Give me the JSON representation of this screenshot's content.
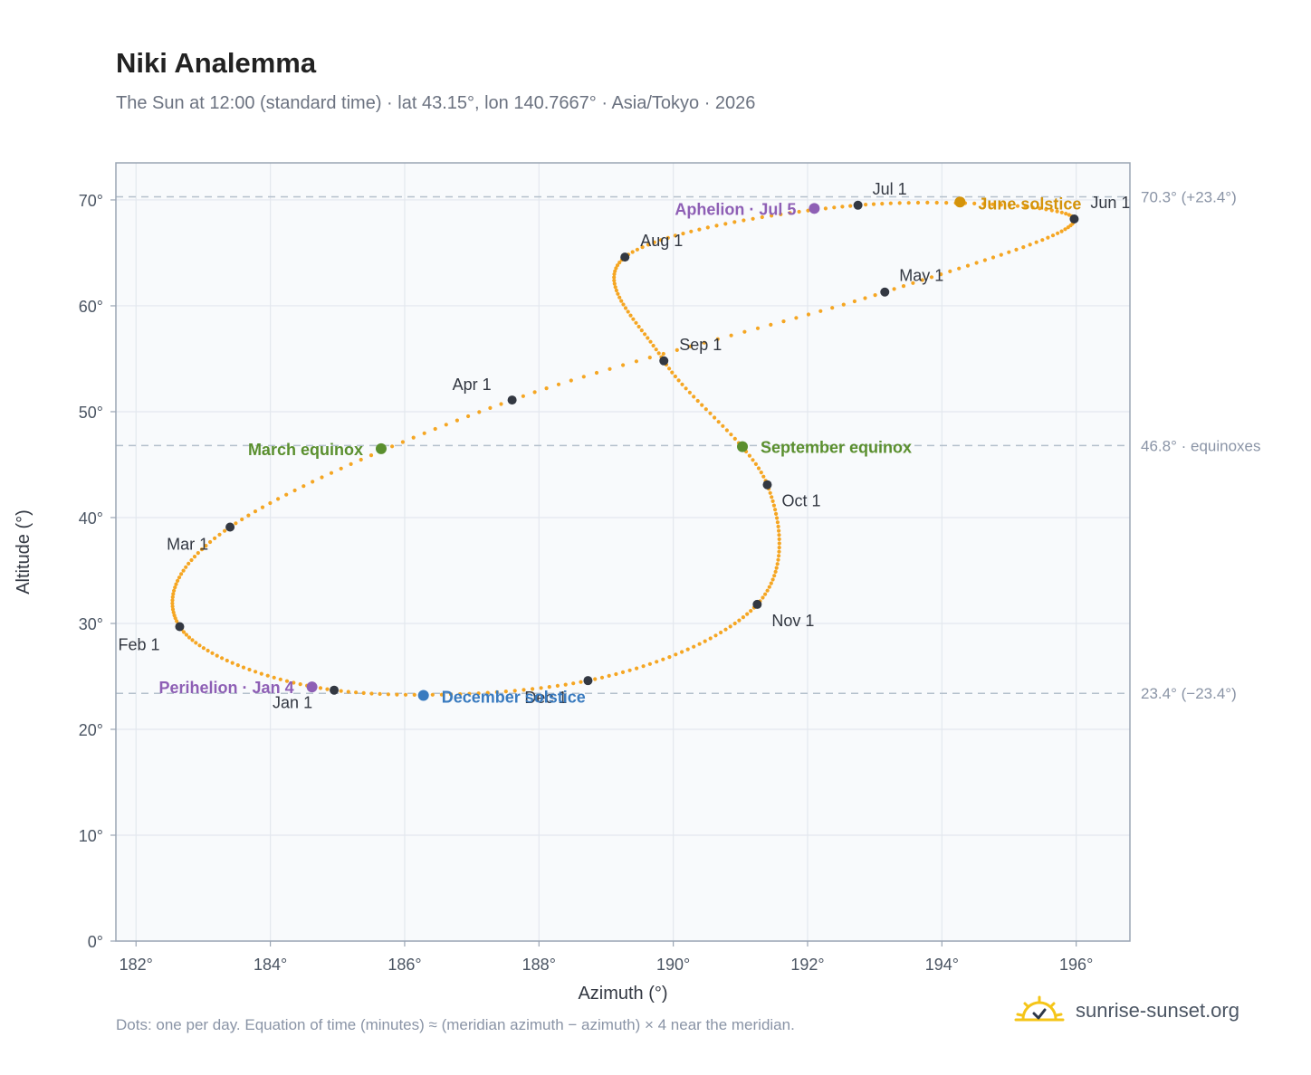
{
  "header": {
    "title": "Niki Analemma",
    "subtitle": "The Sun at 12:00 (standard time) · lat 43.15°, lon 140.7667° · Asia/Tokyo · 2026"
  },
  "footer": {
    "note": "Dots: one per day. Equation of time (minutes) ≈ (meridian azimuth − azimuth) × 4 near the meridian.",
    "brand": "sunrise-sunset.org"
  },
  "colors": {
    "path": "#f5a623",
    "month_marker": "#333842",
    "equinox": "#5a8f2e",
    "solstice_june": "#d4930a",
    "solstice_december": "#3a7bbf",
    "apsis": "#8e5fb5",
    "reference_line": "#b4c0cc",
    "plot_background": "#f8fafc"
  },
  "chart_data": {
    "type": "scatter",
    "xlabel": "Azimuth (°)",
    "ylabel": "Altitude (°)",
    "xlim": [
      181.7,
      196.8
    ],
    "ylim": [
      0,
      73.5
    ],
    "x_ticks": [
      {
        "value": 182,
        "label": "182°"
      },
      {
        "value": 184,
        "label": "184°"
      },
      {
        "value": 186,
        "label": "186°"
      },
      {
        "value": 188,
        "label": "188°"
      },
      {
        "value": 190,
        "label": "190°"
      },
      {
        "value": 192,
        "label": "192°"
      },
      {
        "value": 194,
        "label": "194°"
      },
      {
        "value": 196,
        "label": "196°"
      }
    ],
    "y_ticks": [
      {
        "value": 0,
        "label": "0°"
      },
      {
        "value": 10,
        "label": "10°"
      },
      {
        "value": 20,
        "label": "20°"
      },
      {
        "value": 30,
        "label": "30°"
      },
      {
        "value": 40,
        "label": "40°"
      },
      {
        "value": 50,
        "label": "50°"
      },
      {
        "value": 60,
        "label": "60°"
      },
      {
        "value": 70,
        "label": "70°"
      }
    ],
    "grid": true,
    "reference_lines": [
      {
        "value": 70.3,
        "label": "70.3° (+23.4°)"
      },
      {
        "value": 46.8,
        "label": "46.8° · equinoxes"
      },
      {
        "value": 23.4,
        "label": "23.4° (−23.4°)"
      }
    ],
    "month_points": [
      {
        "label": "Jan 1",
        "x": 184.95,
        "y": 23.7
      },
      {
        "label": "Feb 1",
        "x": 182.65,
        "y": 29.7
      },
      {
        "label": "Mar 1",
        "x": 183.4,
        "y": 39.1
      },
      {
        "label": "Apr 1",
        "x": 187.6,
        "y": 51.1
      },
      {
        "label": "May 1",
        "x": 193.15,
        "y": 61.3
      },
      {
        "label": "Jun 1",
        "x": 195.97,
        "y": 68.2
      },
      {
        "label": "Jul 1",
        "x": 192.75,
        "y": 69.5
      },
      {
        "label": "Aug 1",
        "x": 189.28,
        "y": 64.6
      },
      {
        "label": "Sep 1",
        "x": 189.86,
        "y": 54.8
      },
      {
        "label": "Oct 1",
        "x": 191.4,
        "y": 43.1
      },
      {
        "label": "Nov 1",
        "x": 191.25,
        "y": 31.8
      },
      {
        "label": "Dec 1",
        "x": 188.73,
        "y": 24.6
      }
    ],
    "events": [
      {
        "label": "March equinox",
        "x": 185.65,
        "y": 46.5,
        "kind": "equinox"
      },
      {
        "label": "September equinox",
        "x": 191.03,
        "y": 46.7,
        "kind": "equinox"
      },
      {
        "label": "June solstice",
        "x": 194.27,
        "y": 69.8,
        "kind": "solstice_june"
      },
      {
        "label": "December solstice",
        "x": 186.28,
        "y": 23.2,
        "kind": "solstice_december"
      },
      {
        "label": "Perihelion · Jan 4",
        "x": 184.62,
        "y": 24.0,
        "kind": "apsis"
      },
      {
        "label": "Aphelion · Jul 5",
        "x": 192.1,
        "y": 69.2,
        "kind": "apsis"
      }
    ]
  }
}
